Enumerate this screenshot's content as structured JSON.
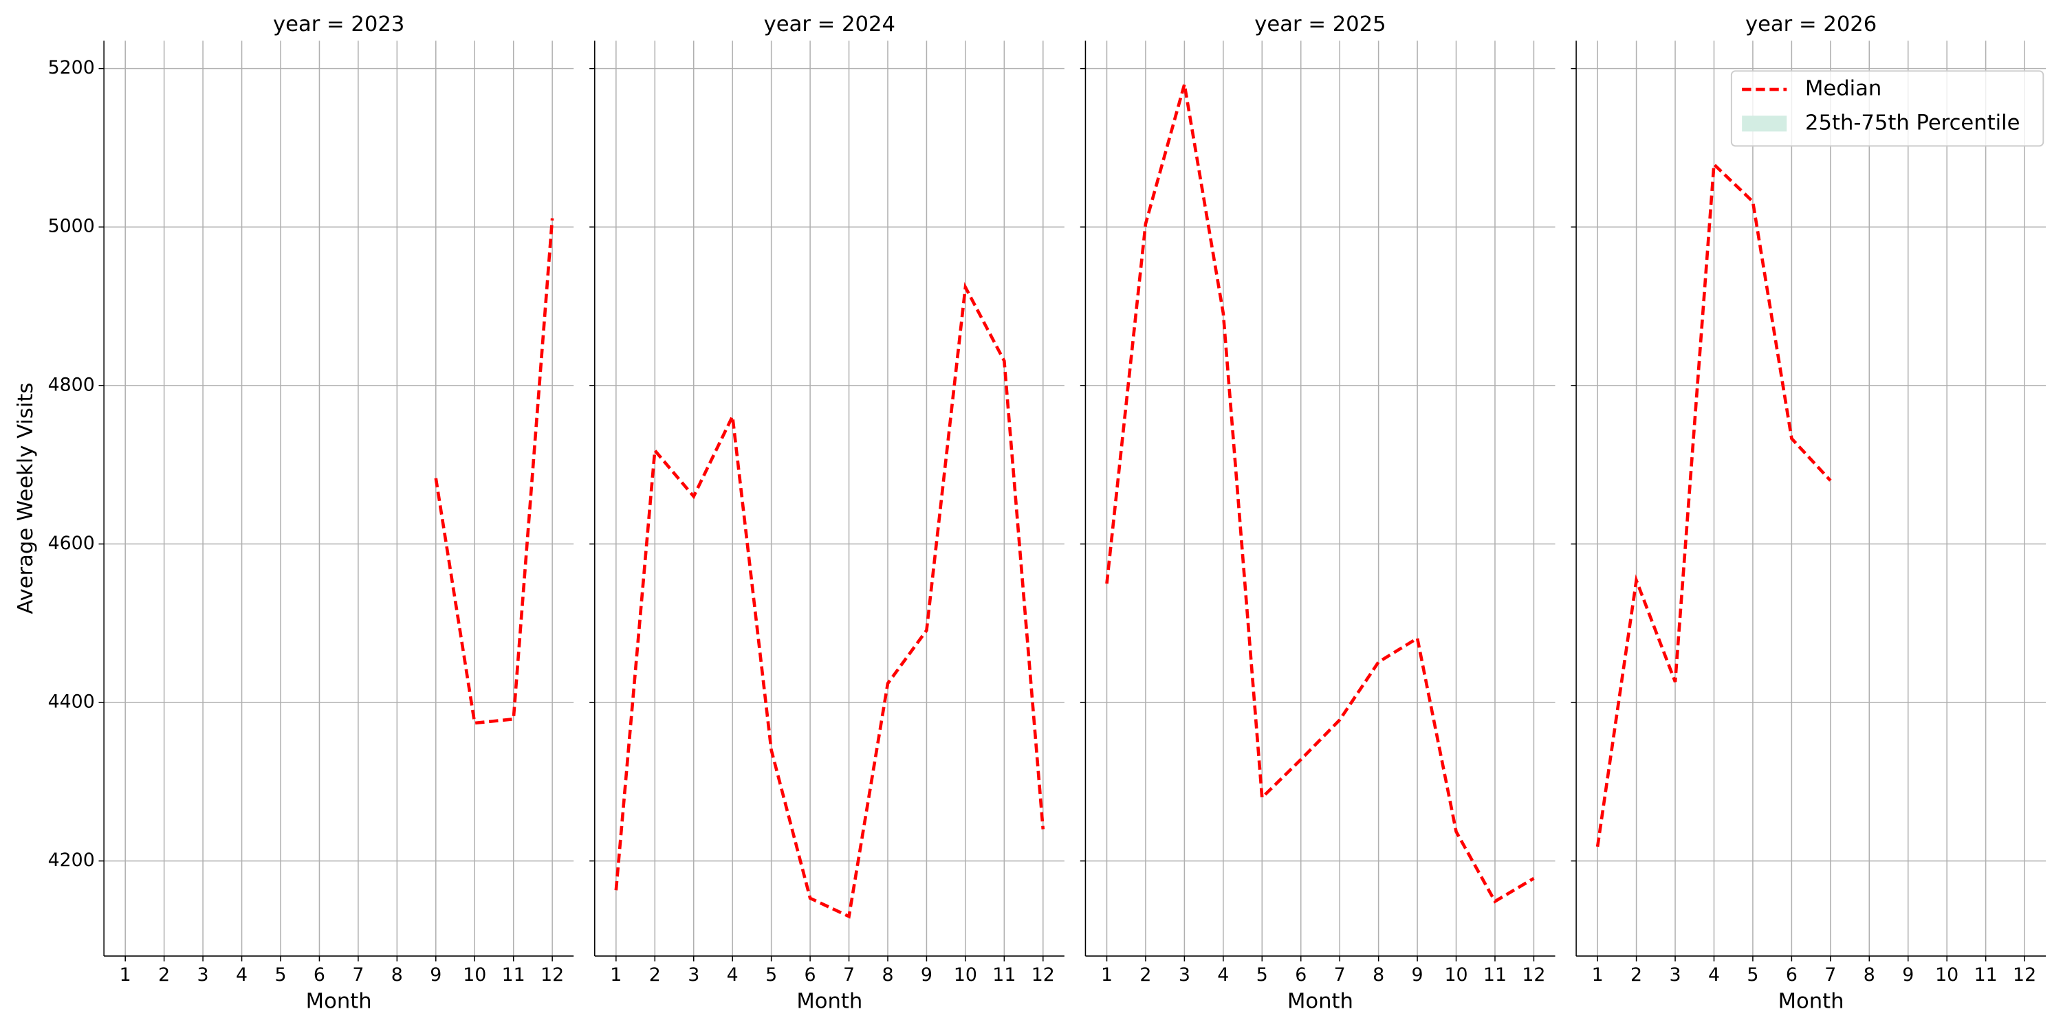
{
  "chart_data": {
    "type": "line",
    "ylabel": "Average Weekly Visits",
    "xlabel": "Month",
    "x": [
      1,
      2,
      3,
      4,
      5,
      6,
      7,
      8,
      9,
      10,
      11,
      12
    ],
    "xlim": [
      0.45,
      12.55
    ],
    "xticks": [
      1,
      2,
      3,
      4,
      5,
      6,
      7,
      8,
      9,
      10,
      11,
      12
    ],
    "ylim": [
      4080,
      5235
    ],
    "yticks": [
      4200,
      4400,
      4600,
      4800,
      5000,
      5200
    ],
    "grid": true,
    "legend": "upper right",
    "series": [
      {
        "name": "Median",
        "color": "#ff0000",
        "dashed": true
      },
      {
        "name": "25th-75th Percentile",
        "color": "#d3ede3"
      }
    ],
    "facets": [
      {
        "title": "year = 2023",
        "values": [
          null,
          null,
          null,
          null,
          null,
          null,
          null,
          null,
          4683,
          4374,
          4379,
          5011
        ]
      },
      {
        "title": "year = 2024",
        "values": [
          4163,
          4718,
          4660,
          4761,
          4340,
          4153,
          4130,
          4424,
          4491,
          4924,
          4831,
          4240
        ]
      },
      {
        "title": "year = 2025",
        "values": [
          4550,
          5004,
          5180,
          4891,
          4280,
          4328,
          4378,
          4451,
          4481,
          4237,
          4149,
          4178
        ]
      },
      {
        "title": "year = 2026",
        "values": [
          4218,
          4554,
          4426,
          5079,
          5032,
          4733,
          4680,
          null,
          null,
          null,
          null,
          null
        ]
      }
    ]
  }
}
